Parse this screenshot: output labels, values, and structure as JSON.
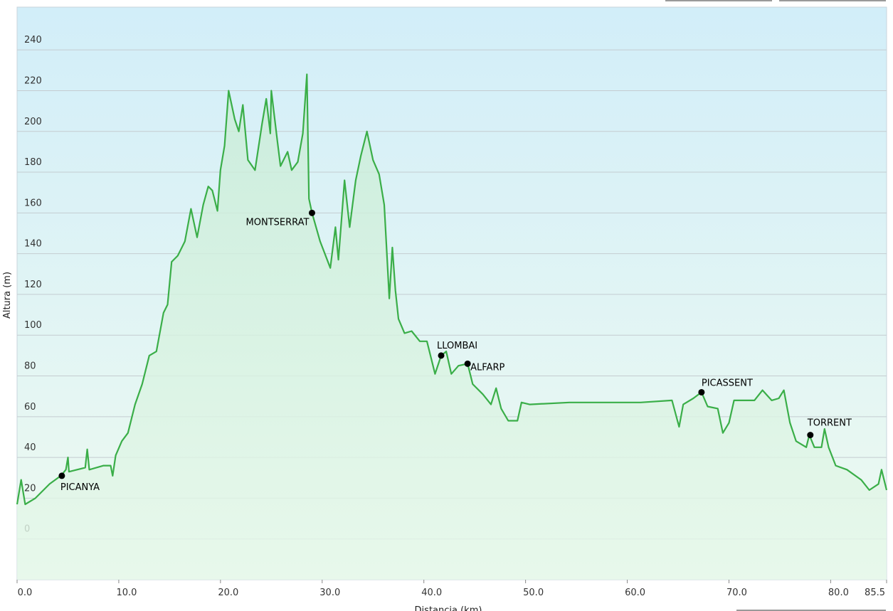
{
  "chart_data": {
    "type": "area",
    "xlabel": "Distancia (km)",
    "ylabel": "Altura (m)",
    "xlim": [
      0,
      85.5
    ],
    "ylim": [
      -20,
      261
    ],
    "xticks": [
      {
        "value": 0,
        "label": "0.0"
      },
      {
        "value": 10,
        "label": "10.0"
      },
      {
        "value": 20,
        "label": "20.0"
      },
      {
        "value": 30,
        "label": "30.0"
      },
      {
        "value": 40,
        "label": "40.0"
      },
      {
        "value": 50,
        "label": "50.0"
      },
      {
        "value": 60,
        "label": "60.0"
      },
      {
        "value": 70,
        "label": "70.0"
      },
      {
        "value": 80,
        "label": "80.0"
      },
      85.5
    ],
    "yticks": [
      0,
      20,
      40,
      60,
      80,
      100,
      120,
      140,
      160,
      180,
      200,
      220,
      240
    ],
    "grid": true,
    "series": [
      {
        "color": "#3aae48",
        "x": [
          0,
          0.4,
          0.8,
          1.8,
          3.2,
          4.3,
          4.8,
          5.0,
          5.1,
          6.7,
          6.9,
          7.1,
          8.5,
          9.2,
          9.4,
          9.7,
          10.3,
          10.9,
          11.6,
          12.3,
          13.0,
          13.7,
          14.4,
          14.8,
          15.2,
          15.8,
          16.5,
          17.1,
          17.7,
          18.3,
          18.8,
          19.2,
          19.7,
          20.0,
          20.4,
          20.8,
          21.4,
          21.8,
          22.2,
          22.7,
          23.4,
          24.1,
          24.5,
          24.9,
          25.0,
          25.6,
          25.9,
          26.6,
          27.0,
          27.6,
          28.1,
          28.5,
          28.7,
          29.0,
          29.8,
          30.8,
          31.3,
          31.6,
          32.2,
          32.7,
          33.3,
          33.8,
          34.4,
          35.0,
          35.6,
          36.1,
          36.6,
          36.9,
          37.2,
          37.5,
          38.1,
          38.8,
          39.6,
          40.3,
          41.1,
          41.7,
          42.2,
          42.7,
          43.4,
          44.3,
          44.8,
          45.8,
          46.6,
          47.1,
          47.6,
          48.3,
          49.2,
          49.6,
          50.4,
          54.3,
          57.8,
          61.3,
          64.4,
          65.1,
          65.5,
          66.5,
          67.3,
          67.9,
          68.9,
          69.4,
          70.0,
          70.5,
          72.5,
          73.3,
          74.2,
          74.9,
          75.4,
          76.0,
          76.6,
          77.6,
          77.9,
          78.4,
          79.1,
          79.4,
          79.8,
          80.5,
          81.6,
          83.0,
          83.8,
          84.7,
          85.0,
          85.5
        ],
        "values": [
          17,
          29,
          17,
          20,
          27,
          31,
          34,
          40,
          33,
          35,
          44,
          34,
          36,
          36,
          31,
          41,
          48,
          52,
          66,
          76,
          90,
          92,
          111,
          115,
          136,
          139,
          146,
          162,
          148,
          164,
          173,
          171,
          161,
          181,
          193,
          220,
          206,
          200,
          213,
          186,
          181,
          204,
          216,
          199,
          220,
          195,
          183,
          190,
          181,
          185,
          199,
          228,
          167,
          160,
          146,
          133,
          153,
          137,
          176,
          153,
          176,
          188,
          200,
          186,
          179,
          164,
          118,
          143,
          122,
          108,
          101,
          102,
          97,
          97,
          81,
          90,
          92,
          81,
          85,
          86,
          76,
          71,
          66,
          74,
          64,
          58,
          58,
          67,
          66,
          67,
          67,
          67,
          68,
          55,
          66,
          69,
          72,
          65,
          64,
          52,
          57,
          68,
          68,
          73,
          68,
          69,
          73,
          57,
          48,
          45,
          51,
          45,
          45,
          54,
          45,
          36,
          34,
          29,
          24,
          27,
          34,
          24
        ]
      }
    ],
    "points": [
      {
        "label": "PICANYA",
        "x": 4.4,
        "y": 31
      },
      {
        "label": "MONTSERRAT",
        "x": 29.0,
        "y": 160
      },
      {
        "label": "LLOMBAI",
        "x": 41.7,
        "y": 90
      },
      {
        "label": "ALFARP",
        "x": 44.3,
        "y": 86
      },
      {
        "label": "PICASSENT",
        "x": 67.3,
        "y": 72
      },
      {
        "label": "TORRENT",
        "x": 78.0,
        "y": 51
      }
    ]
  }
}
